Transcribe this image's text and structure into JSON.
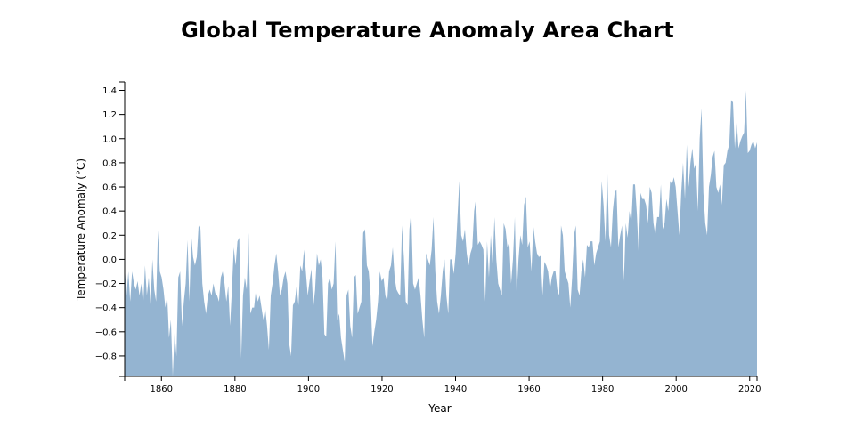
{
  "chart_data": {
    "type": "area",
    "title": "Global Temperature Anomaly Area Chart",
    "xlabel": "Year",
    "ylabel": "Temperature Anomaly (°C)",
    "xlim": [
      1850,
      2022
    ],
    "ylim": [
      -0.97,
      1.47
    ],
    "x_ticks": [
      1860,
      1880,
      1900,
      1920,
      1940,
      1960,
      1980,
      2000,
      2020
    ],
    "y_ticks": [
      -0.8,
      -0.6,
      -0.4,
      -0.2,
      0.0,
      0.2,
      0.4,
      0.6,
      0.8,
      1.0,
      1.2,
      1.4
    ],
    "y_tick_labels": [
      "−0.8",
      "−0.6",
      "−0.4",
      "−0.2",
      "0.0",
      "0.2",
      "0.4",
      "0.6",
      "0.8",
      "1.0",
      "1.2",
      "1.4"
    ],
    "x_step": 0.5,
    "x_start": 1850,
    "values": [
      -0.06,
      -0.3,
      -0.1,
      -0.35,
      -0.1,
      -0.2,
      -0.25,
      -0.18,
      -0.3,
      -0.2,
      -0.38,
      -0.05,
      -0.3,
      -0.15,
      -0.38,
      0.0,
      -0.25,
      -0.35,
      0.24,
      -0.1,
      -0.15,
      -0.25,
      -0.4,
      -0.3,
      -0.65,
      -0.5,
      -0.97,
      -0.6,
      -0.8,
      -0.15,
      -0.1,
      -0.55,
      -0.35,
      -0.2,
      0.16,
      -0.35,
      0.2,
      0.02,
      -0.05,
      0.02,
      0.28,
      0.25,
      -0.2,
      -0.35,
      -0.45,
      -0.3,
      -0.25,
      -0.3,
      -0.2,
      -0.28,
      -0.3,
      -0.35,
      -0.15,
      -0.1,
      -0.2,
      -0.35,
      -0.22,
      -0.55,
      -0.25,
      0.1,
      -0.05,
      0.15,
      0.18,
      -0.82,
      -0.3,
      -0.15,
      -0.25,
      0.22,
      -0.45,
      -0.4,
      -0.4,
      -0.25,
      -0.35,
      -0.3,
      -0.4,
      -0.5,
      -0.4,
      -0.55,
      -0.75,
      -0.3,
      -0.2,
      -0.05,
      0.05,
      -0.1,
      -0.3,
      -0.25,
      -0.15,
      -0.1,
      -0.2,
      -0.7,
      -0.8,
      -0.38,
      -0.35,
      -0.22,
      -0.38,
      -0.05,
      -0.1,
      0.08,
      -0.1,
      -0.3,
      -0.18,
      -0.08,
      -0.4,
      -0.25,
      0.05,
      -0.05,
      0.0,
      -0.15,
      -0.62,
      -0.64,
      -0.2,
      -0.15,
      -0.25,
      -0.2,
      0.15,
      -0.5,
      -0.45,
      -0.65,
      -0.75,
      -0.85,
      -0.3,
      -0.25,
      -0.55,
      -0.65,
      -0.15,
      -0.13,
      -0.45,
      -0.4,
      -0.35,
      0.22,
      0.25,
      -0.05,
      -0.1,
      -0.3,
      -0.72,
      -0.6,
      -0.5,
      -0.35,
      -0.1,
      -0.18,
      -0.15,
      -0.3,
      -0.35,
      -0.1,
      -0.05,
      0.1,
      -0.15,
      -0.25,
      -0.28,
      -0.3,
      0.28,
      0.02,
      -0.35,
      -0.38,
      0.25,
      0.4,
      -0.2,
      -0.25,
      -0.2,
      -0.15,
      -0.3,
      -0.5,
      -0.65,
      0.05,
      0.0,
      -0.05,
      0.08,
      0.35,
      -0.1,
      -0.35,
      -0.45,
      -0.3,
      -0.1,
      0.0,
      -0.3,
      -0.45,
      0.0,
      0.0,
      -0.12,
      0.05,
      0.35,
      0.65,
      0.2,
      0.15,
      0.25,
      0.05,
      -0.05,
      0.05,
      0.1,
      0.4,
      0.5,
      0.12,
      0.15,
      0.12,
      0.08,
      -0.35,
      0.15,
      -0.15,
      0.2,
      -0.05,
      0.35,
      0.0,
      -0.2,
      -0.25,
      -0.3,
      0.3,
      0.25,
      0.1,
      0.15,
      -0.2,
      0.0,
      0.35,
      -0.3,
      0.0,
      0.2,
      0.12,
      0.45,
      0.52,
      0.1,
      0.15,
      -0.1,
      0.28,
      0.15,
      0.05,
      0.02,
      0.03,
      -0.3,
      -0.02,
      -0.05,
      -0.1,
      -0.25,
      -0.15,
      -0.1,
      -0.1,
      -0.25,
      -0.3,
      0.28,
      0.2,
      -0.1,
      -0.15,
      -0.2,
      -0.4,
      -0.15,
      0.2,
      0.28,
      -0.25,
      -0.3,
      -0.1,
      0.0,
      -0.15,
      0.12,
      0.1,
      0.15,
      0.15,
      -0.05,
      0.05,
      0.1,
      0.15,
      0.65,
      0.45,
      0.15,
      0.75,
      0.2,
      0.1,
      0.4,
      0.55,
      0.58,
      0.1,
      0.2,
      0.28,
      -0.18,
      0.3,
      0.18,
      0.4,
      0.3,
      0.62,
      0.62,
      0.38,
      0.05,
      0.55,
      0.5,
      0.5,
      0.45,
      0.3,
      0.6,
      0.55,
      0.3,
      0.2,
      0.35,
      0.35,
      0.62,
      0.25,
      0.3,
      0.5,
      0.4,
      0.65,
      0.62,
      0.68,
      0.6,
      0.4,
      0.2,
      0.55,
      0.8,
      0.5,
      0.95,
      0.6,
      0.8,
      0.92,
      0.75,
      0.8,
      0.4,
      1.0,
      1.25,
      0.55,
      0.3,
      0.2,
      0.6,
      0.7,
      0.85,
      0.9,
      0.6,
      0.55,
      0.62,
      0.45,
      0.78,
      0.8,
      0.9,
      0.95,
      1.32,
      1.3,
      0.92,
      1.15,
      0.92,
      0.98,
      1.02,
      1.05,
      1.4,
      0.88,
      0.9,
      0.95,
      0.98,
      0.92,
      0.97
    ]
  }
}
